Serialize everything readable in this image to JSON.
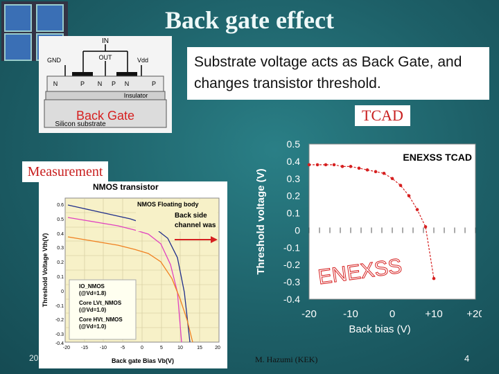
{
  "slide": {
    "title": "Back gate effect",
    "callout": "Substrate voltage acts as Back Gate, and changes transistor threshold.",
    "back_gate_label": "Back Gate",
    "tcad_label": "TCAD",
    "measurement_label": "Measurement",
    "footer_left": "20",
    "footer_center": "M. Hazumi (KEK)",
    "page_number": "4"
  },
  "diagram": {
    "in_label": "IN",
    "gnd_label": "GND",
    "out_label": "OUT",
    "vdd_label": "Vdd",
    "regions": [
      "N",
      "P",
      "N",
      "P",
      "N",
      "P"
    ],
    "insulator_label": "Insulator",
    "substrate_label": "Silicon substrate"
  },
  "measurement_chart": {
    "title": "NMOS transistor",
    "annotation_1": "NMOS Floating body",
    "annotation_2": "Back side",
    "annotation_3": "channel was",
    "xlabel": "Back gate Bias Vb(V)",
    "ylabel": "Threshold Voltage Vth(V)",
    "x_ticks": [
      "-20",
      "-15",
      "-10",
      "-5",
      "0",
      "5",
      "10",
      "15",
      "20"
    ],
    "y_ticks": [
      "0.6",
      "0.5",
      "0.4",
      "0.3",
      "0.2",
      "0.1",
      "0",
      "-0.1",
      "-0.2",
      "-0.3",
      "-0.4"
    ],
    "legend": [
      "IO_NMOS",
      "(@Vd=1.8)",
      "Core LVt_NMOS",
      "(@Vd=1.0)",
      "Core HVt_NMOS",
      "(@Vd=1.0)"
    ],
    "colors": {
      "io": "#1f2d8a",
      "lvt": "#e040c0",
      "hvt": "#f08020"
    }
  },
  "chart_data": {
    "type": "line",
    "title": "ENEXSS TCAD",
    "xlabel": "Back bias (V)",
    "ylabel": "Threshold voltage (V)",
    "x_tick_labels": [
      "-20",
      "-10",
      "0",
      "+10",
      "+20"
    ],
    "y_ticks": [
      0.5,
      0.4,
      0.3,
      0.2,
      0.1,
      0,
      -0.1,
      -0.2,
      -0.3,
      -0.4
    ],
    "xlim": [
      -20,
      20
    ],
    "ylim": [
      -0.4,
      0.5
    ],
    "watermark": "ENEXSS",
    "series": [
      {
        "x": [
          -20,
          -18,
          -16,
          -14,
          -12,
          -10,
          -8,
          -6,
          -4,
          -2,
          0,
          2,
          4,
          6,
          8,
          10
        ],
        "y": [
          0.38,
          0.38,
          0.38,
          0.38,
          0.37,
          0.37,
          0.36,
          0.35,
          0.34,
          0.33,
          0.3,
          0.26,
          0.2,
          0.12,
          0.02,
          -0.28
        ]
      }
    ],
    "color": "#d62020"
  }
}
